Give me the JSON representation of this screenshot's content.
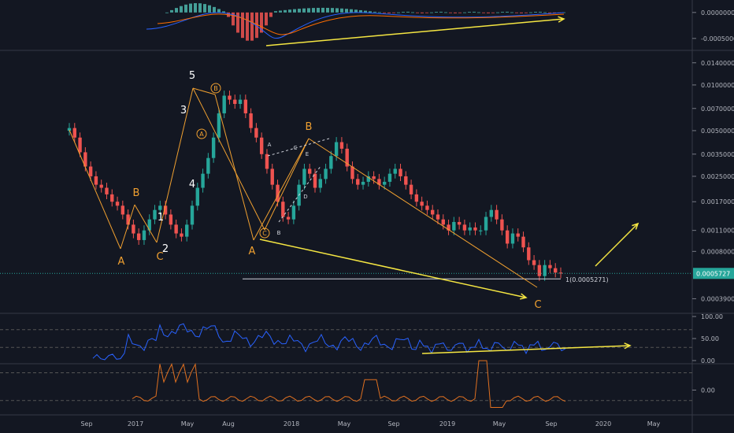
{
  "chart_data": {
    "type": "line",
    "title": "",
    "price_pane": {
      "scale": "log",
      "ylim": [
        0.00032,
        0.0165
      ],
      "price_ticks": [
        "0.0140000",
        "0.0100000",
        "0.0070000",
        "0.0050000",
        "0.0035000",
        "0.0025000",
        "0.0017000",
        "0.0011000",
        "0.0008000",
        "0.0003900"
      ],
      "tick_values": [
        0.014,
        0.01,
        0.007,
        0.005,
        0.0035,
        0.0025,
        0.0017,
        0.0011,
        0.0008,
        0.00039
      ],
      "current_price": 0.0005727,
      "current_price_label": "0.0005727",
      "fib_label": "1(0.0005271)",
      "fib_value": 0.0005271,
      "series": [
        {
          "values": [
            0.0052,
            0.0045,
            0.0036,
            0.0029,
            0.0025,
            0.0022,
            0.0021,
            0.0019,
            0.0017,
            0.0016,
            0.0014,
            0.0012,
            0.00105,
            0.00095,
            0.0011,
            0.0013,
            0.0015,
            0.0016,
            0.0014,
            0.0012,
            0.00105,
            0.001,
            0.0012,
            0.0016,
            0.0021,
            0.0026,
            0.0033,
            0.0045,
            0.0065,
            0.0085,
            0.008,
            0.0075,
            0.008,
            0.0065,
            0.0052,
            0.0045,
            0.0035,
            0.0028,
            0.0022,
            0.0017,
            0.00135,
            0.0013,
            0.0016,
            0.0022,
            0.0028,
            0.0026,
            0.0021,
            0.0024,
            0.0028,
            0.0034,
            0.0042,
            0.0038,
            0.0029,
            0.0024,
            0.0022,
            0.0023,
            0.0025,
            0.0024,
            0.0022,
            0.0023,
            0.0026,
            0.0028,
            0.0025,
            0.0022,
            0.0019,
            0.0017,
            0.0016,
            0.0015,
            0.0014,
            0.0013,
            0.0012,
            0.0011,
            0.00125,
            0.0012,
            0.0011,
            0.00115,
            0.0011,
            0.0011,
            0.00135,
            0.0015,
            0.0013,
            0.0011,
            0.0009,
            0.00105,
            0.001,
            0.00085,
            0.0007,
            0.00065,
            0.00055,
            0.00065,
            0.00062,
            0.00058,
            0.0005727
          ]
        }
      ]
    },
    "x_axis": {
      "ticks": [
        "Sep",
        "2017",
        "May",
        "Aug",
        "2018",
        "May",
        "Sep",
        "2019",
        "May",
        "Sep",
        "2020",
        "May"
      ]
    },
    "waves": {
      "white": [
        "5",
        "3",
        "4",
        "1",
        "2"
      ],
      "orange": [
        "B",
        "A",
        "C",
        "B",
        "A",
        "C"
      ],
      "circled": [
        "B",
        "A",
        "C"
      ],
      "small": [
        "A",
        "C",
        "B",
        "D",
        "E"
      ]
    },
    "macd_pane": {
      "ticks": [
        "0.0000000",
        "-0.0005000"
      ],
      "tick_values": [
        0,
        -0.0005
      ]
    },
    "rsi_pane": {
      "ticks": [
        "100.00",
        "50.00",
        "0.00"
      ],
      "tick_values": [
        100,
        50,
        0
      ]
    },
    "osc_pane": {
      "ticks": [
        "0.00"
      ],
      "tick_values": [
        0
      ]
    },
    "colors": {
      "up": "#26a69a",
      "down": "#ef5350",
      "wave_orange": "#f0a030",
      "arrow_yellow": "#f5e642",
      "rsi_line": "#2962ff",
      "osc_line": "#e07020",
      "current_price_bg": "#26a69a"
    }
  }
}
